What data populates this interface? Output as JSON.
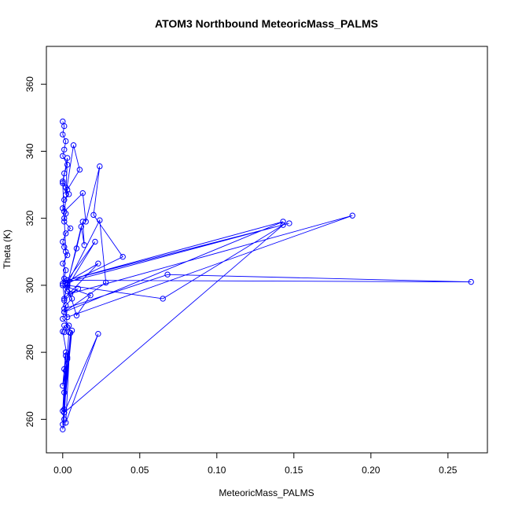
{
  "chart_data": {
    "type": "line",
    "title": "ATOM3 Northbound MeteoricMass_PALMS",
    "xlabel": "MeteoricMass_PALMS",
    "ylabel": "Theta (K)",
    "xlim": [
      -0.0106,
      0.2756
    ],
    "ylim": [
      250.0,
      371.3
    ],
    "xticks": [
      0.0,
      0.05,
      0.1,
      0.15,
      0.2,
      0.25
    ],
    "xtick_labels": [
      "0.00",
      "0.05",
      "0.10",
      "0.15",
      "0.20",
      "0.25"
    ],
    "yticks": [
      260,
      280,
      300,
      320,
      340,
      360
    ],
    "ytick_labels": [
      "260",
      "280",
      "300",
      "320",
      "340",
      "360"
    ],
    "grid": false,
    "marker": "open-circle",
    "series": [
      {
        "color": "#0000ff",
        "x": [
          0.0,
          0.001,
          0.0,
          0.002,
          0.001,
          0.0,
          0.003,
          0.001,
          0.0,
          0.002,
          0.004,
          0.001,
          0.0,
          0.002,
          0.001,
          0.005,
          0.002,
          0.0,
          0.001,
          0.003,
          0.0,
          0.002,
          0.001,
          0.0,
          0.003,
          0.006,
          0.002,
          0.001,
          0.0,
          0.004,
          0.001,
          0.003,
          0.0,
          0.002,
          0.001,
          0.0,
          0.003,
          0.002,
          0.007,
          0.011,
          0.003,
          0.001,
          0.013,
          0.015,
          0.024,
          0.02,
          0.039,
          0.003,
          0.024,
          0.028,
          0.001,
          0.143,
          0.003,
          0.147,
          0.002,
          0.023,
          0.001,
          0.003,
          0.012,
          0.014,
          0.013,
          0.009,
          0.003,
          0.001,
          0.01,
          0.005,
          0.188,
          0.003,
          0.001,
          0.068,
          0.265,
          0.003,
          0.021,
          0.003,
          0.018,
          0.009,
          0.003,
          0.065,
          0.143,
          0.001,
          0.023,
          0.002,
          0.005,
          0.001,
          0.004,
          0.0,
          0.006,
          0.002,
          0.0,
          0.001,
          0.003,
          0.0,
          0.002,
          0.001,
          0.0,
          0.002,
          0.001,
          0.003,
          0.0,
          0.001
        ],
        "y": [
          348.9,
          347.5,
          345.0,
          343.0,
          340.5,
          338.6,
          336.0,
          333.4,
          331.0,
          329.2,
          327.2,
          325.5,
          323.0,
          321.4,
          319.0,
          317.0,
          315.5,
          313.0,
          311.4,
          309.0,
          306.5,
          304.5,
          302.0,
          300.0,
          298.2,
          296.0,
          294.0,
          292.0,
          290.0,
          288.0,
          286.0,
          287.5,
          300.5,
          310.0,
          320.0,
          330.5,
          338.0,
          327.0,
          341.8,
          334.5,
          328.5,
          322.0,
          327.5,
          319.0,
          335.5,
          321.0,
          308.5,
          300.5,
          319.4,
          300.8,
          292.0,
          319.0,
          301.5,
          318.5,
          300.8,
          306.5,
          296.0,
          300.2,
          317.5,
          312.0,
          319.0,
          311.0,
          300.5,
          295.5,
          299.0,
          297.5,
          320.8,
          290.5,
          293.0,
          303.2,
          301.0,
          301.5,
          313.0,
          299.5,
          297.0,
          291.0,
          300.0,
          296.0,
          318.0,
          262.0,
          285.5,
          259.0,
          285.8,
          263.0,
          286.0,
          258.5,
          286.5,
          274.5,
          257.0,
          260.0,
          278.0,
          270.0,
          280.0,
          268.0,
          262.5,
          279.0,
          275.0,
          278.5,
          286.2,
          288.0
        ]
      }
    ]
  }
}
